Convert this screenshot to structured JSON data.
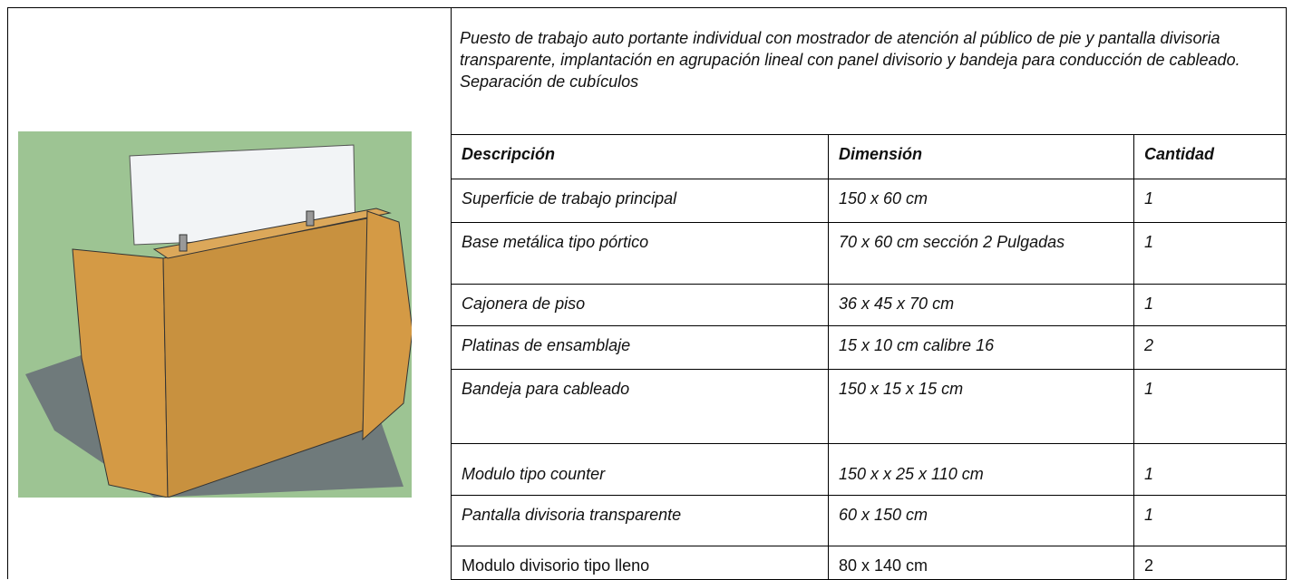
{
  "description": "Puesto de trabajo auto portante individual con mostrador de atención al público de pie y  pantalla divisoria transparente, implantación en  agrupación lineal con panel divisorio  y bandeja para conducción de cableado. Separación de cubículos",
  "table": {
    "header": [
      "Descripción",
      "Dimensión",
      "Cantidad"
    ],
    "rows": [
      [
        "Superficie de trabajo principal",
        "150 x 60 cm",
        "1"
      ],
      [
        "Base metálica tipo pórtico",
        "70 x 60 cm sección 2 Pulgadas",
        "1"
      ],
      [
        "Cajonera de piso",
        "36 x 45 x 70 cm",
        "1"
      ],
      [
        "Platinas de ensamblaje",
        "15 x 10 cm calibre 16",
        "2"
      ],
      [
        "Bandeja para cableado",
        "150 x 15 x 15 cm",
        "1"
      ],
      [
        "Modulo tipo counter",
        "150 x x 25 x 110 cm",
        "1"
      ],
      [
        "Pantalla divisoria transparente",
        "60 x 150 cm",
        "1"
      ],
      [
        "Modulo divisorio tipo lleno",
        "80 x 140 cm",
        "2"
      ]
    ]
  }
}
